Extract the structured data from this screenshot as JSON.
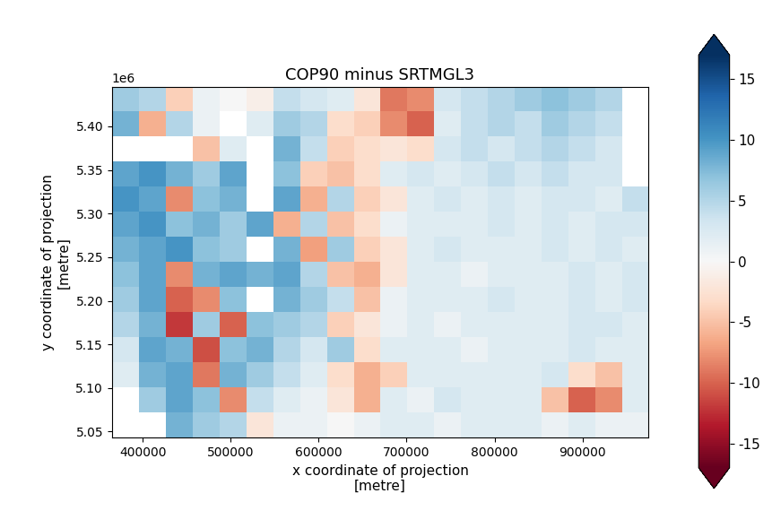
{
  "chart_data": {
    "type": "heatmap",
    "title": "COP90 minus SRTMGL3",
    "x_label": "x coordinate of projection\n[metre]",
    "y_label": "y coordinate of projection\n[metre]",
    "annotations": [
      "1e6"
    ],
    "color": "RdBu",
    "xlim": [
      365000,
      975000
    ],
    "ylim": [
      5043000,
      5445000
    ],
    "xticks": [
      400000,
      500000,
      600000,
      700000,
      800000,
      900000
    ],
    "yticks": [
      {
        "value": 5050000,
        "label": "5.05"
      },
      {
        "value": 5100000,
        "label": "5.10"
      },
      {
        "value": 5150000,
        "label": "5.15"
      },
      {
        "value": 5200000,
        "label": "5.20"
      },
      {
        "value": 5250000,
        "label": "5.25"
      },
      {
        "value": 5300000,
        "label": "5.30"
      },
      {
        "value": 5350000,
        "label": "5.35"
      },
      {
        "value": 5400000,
        "label": "5.40"
      }
    ],
    "color_range": [
      -17,
      17
    ],
    "color_ticks": [
      -15,
      -10,
      -5,
      0,
      5,
      10,
      15
    ],
    "cells": [
      [
        6,
        5,
        -4,
        1,
        0,
        -1,
        4,
        3,
        2,
        -2,
        -9,
        -8,
        3,
        4,
        5,
        6,
        7,
        6,
        5,
        null
      ],
      [
        8,
        -6,
        5,
        1,
        null,
        2,
        6,
        5,
        -3,
        -4,
        -8,
        -10,
        2,
        4,
        5,
        4,
        6,
        5,
        4,
        null
      ],
      [
        null,
        null,
        null,
        -5,
        2,
        null,
        8,
        4,
        -4,
        -3,
        -2,
        -3,
        3,
        4,
        3,
        4,
        5,
        4,
        3,
        null
      ],
      [
        9,
        10,
        8,
        6,
        9,
        null,
        7,
        -4,
        -5,
        -3,
        2,
        3,
        2,
        3,
        4,
        3,
        4,
        3,
        3,
        null
      ],
      [
        10,
        9,
        -8,
        7,
        8,
        null,
        9,
        -6,
        5,
        -4,
        -2,
        2,
        3,
        2,
        3,
        2,
        3,
        3,
        2,
        4
      ],
      [
        9,
        10,
        7,
        8,
        6,
        9,
        -6,
        5,
        -5,
        -3,
        1,
        2,
        2,
        2,
        3,
        2,
        3,
        2,
        3,
        3
      ],
      [
        8,
        9,
        10,
        7,
        6,
        null,
        8,
        -7,
        6,
        -4,
        -2,
        2,
        3,
        2,
        2,
        2,
        3,
        2,
        3,
        2
      ],
      [
        7,
        9,
        -8,
        8,
        9,
        8,
        9,
        5,
        -5,
        -6,
        -2,
        2,
        2,
        1,
        2,
        2,
        2,
        3,
        2,
        3
      ],
      [
        6,
        9,
        -10,
        -8,
        7,
        null,
        8,
        6,
        4,
        -5,
        1,
        2,
        2,
        2,
        3,
        2,
        2,
        3,
        2,
        3
      ],
      [
        5,
        8,
        -12,
        6,
        -10,
        7,
        6,
        5,
        -4,
        -2,
        1,
        2,
        1,
        2,
        2,
        2,
        2,
        3,
        3,
        2
      ],
      [
        3,
        9,
        8,
        -11,
        7,
        8,
        5,
        3,
        6,
        -3,
        2,
        2,
        2,
        1,
        2,
        2,
        2,
        3,
        2,
        2
      ],
      [
        2,
        8,
        9,
        -9,
        8,
        6,
        4,
        2,
        -3,
        -6,
        -4,
        2,
        2,
        2,
        2,
        2,
        3,
        -3,
        -5,
        2
      ],
      [
        null,
        6,
        9,
        7,
        -8,
        4,
        2,
        1,
        -2,
        -6,
        2,
        1,
        3,
        2,
        2,
        2,
        -5,
        -10,
        -8,
        2
      ],
      [
        null,
        null,
        8,
        6,
        5,
        -2,
        1,
        1,
        0,
        1,
        2,
        2,
        1,
        2,
        2,
        2,
        1,
        2,
        1,
        1
      ]
    ]
  }
}
